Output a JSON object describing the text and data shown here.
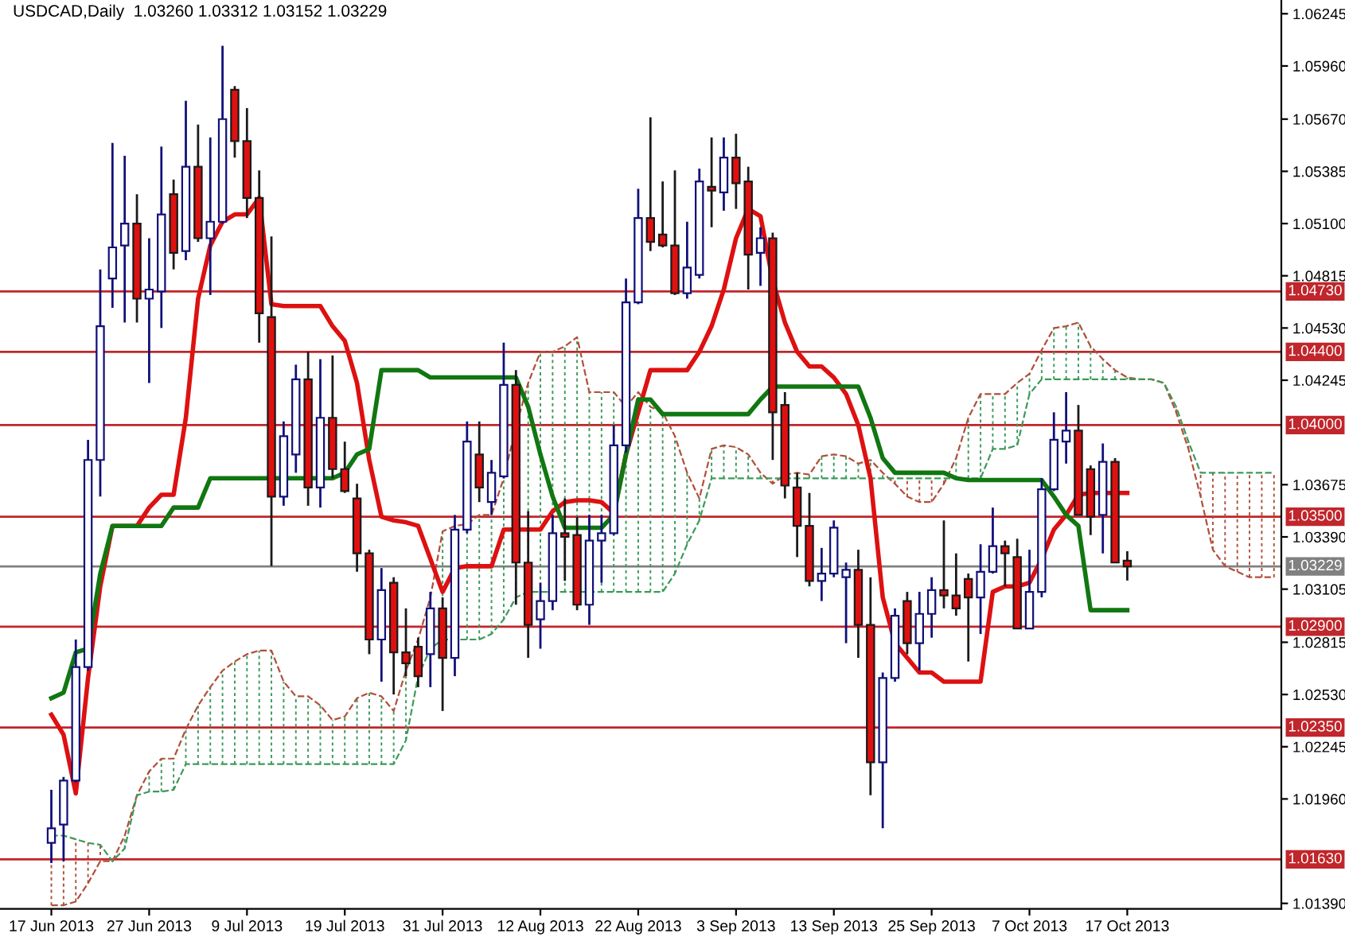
{
  "chart_data": {
    "type": "candlestick",
    "title": "USDCAD,Daily  1.03260 1.03312 1.03152 1.03229",
    "categories": [
      "17 Jun 2013",
      null,
      null,
      null,
      null,
      null,
      null,
      null,
      "27 Jun 2013",
      null,
      null,
      null,
      null,
      null,
      null,
      null,
      "9 Jul 2013",
      null,
      null,
      null,
      null,
      null,
      null,
      null,
      "19 Jul 2013",
      null,
      null,
      null,
      null,
      null,
      null,
      null,
      "31 Jul 2013",
      null,
      null,
      null,
      null,
      null,
      null,
      null,
      "12 Aug 2013",
      null,
      null,
      null,
      null,
      null,
      null,
      null,
      "22 Aug 2013",
      null,
      null,
      null,
      null,
      null,
      null,
      null,
      "3 Sep 2013",
      null,
      null,
      null,
      null,
      null,
      null,
      null,
      "13 Sep 2013",
      null,
      null,
      null,
      null,
      null,
      null,
      null,
      "25 Sep 2013",
      null,
      null,
      null,
      null,
      null,
      null,
      null,
      "7 Oct 2013",
      null,
      null,
      null,
      null,
      null,
      null,
      null,
      "17 Oct 2013",
      null,
      null,
      null,
      null,
      null,
      null,
      null,
      null,
      null,
      null,
      null,
      null
    ],
    "ohlc": [
      [
        1.0172,
        1.0201,
        1.0161,
        1.018
      ],
      [
        1.0182,
        1.0208,
        1.0162,
        1.0206
      ],
      [
        1.0206,
        1.0283,
        1.0205,
        1.0268
      ],
      [
        1.0268,
        1.0392,
        1.0266,
        1.0381
      ],
      [
        1.0381,
        1.0485,
        1.0361,
        1.0454
      ],
      [
        1.048,
        1.0554,
        1.0464,
        1.0497
      ],
      [
        1.0498,
        1.0547,
        1.0456,
        1.051
      ],
      [
        1.051,
        1.0526,
        1.0456,
        1.0469
      ],
      [
        1.0469,
        1.0502,
        1.0423,
        1.0474
      ],
      [
        1.0473,
        1.0552,
        1.0453,
        1.0515
      ],
      [
        1.0526,
        1.0534,
        1.0485,
        1.0494
      ],
      [
        1.0495,
        1.0577,
        1.049,
        1.0541
      ],
      [
        1.0541,
        1.0564,
        1.05,
        1.0502
      ],
      [
        1.0502,
        1.0557,
        1.0471,
        1.0511
      ],
      [
        1.0511,
        1.0607,
        1.051,
        1.0567
      ],
      [
        1.0583,
        1.0585,
        1.0546,
        1.0555
      ],
      [
        1.0555,
        1.0573,
        1.0513,
        1.0524
      ],
      [
        1.0524,
        1.0539,
        1.0445,
        1.0461
      ],
      [
        1.0459,
        1.0503,
        1.0323,
        1.0361
      ],
      [
        1.0361,
        1.0402,
        1.0356,
        1.0394
      ],
      [
        1.0384,
        1.0433,
        1.0374,
        1.0425
      ],
      [
        1.0425,
        1.044,
        1.0356,
        1.0366
      ],
      [
        1.0366,
        1.0436,
        1.0355,
        1.0404
      ],
      [
        1.0404,
        1.0438,
        1.0371,
        1.0376
      ],
      [
        1.0376,
        1.0391,
        1.0363,
        1.0364
      ],
      [
        1.036,
        1.0368,
        1.032,
        1.033
      ],
      [
        1.033,
        1.0332,
        1.0275,
        1.0283
      ],
      [
        1.0283,
        1.0322,
        1.026,
        1.031
      ],
      [
        1.0314,
        1.0317,
        1.0253,
        1.0276
      ],
      [
        1.0276,
        1.03,
        1.0263,
        1.027
      ],
      [
        1.0279,
        1.0284,
        1.0257,
        1.0263
      ],
      [
        1.0275,
        1.0309,
        1.0257,
        1.03
      ],
      [
        1.03,
        1.0306,
        1.0244,
        1.0273
      ],
      [
        1.0273,
        1.0351,
        1.0263,
        1.0343
      ],
      [
        1.0343,
        1.0402,
        1.0341,
        1.0391
      ],
      [
        1.0384,
        1.0402,
        1.0358,
        1.0366
      ],
      [
        1.0358,
        1.0381,
        1.0351,
        1.0374
      ],
      [
        1.0372,
        1.0445,
        1.0371,
        1.0422
      ],
      [
        1.0422,
        1.043,
        1.0302,
        1.0325
      ],
      [
        1.0325,
        1.0353,
        1.0273,
        1.0291
      ],
      [
        1.0294,
        1.0314,
        1.0278,
        1.0304
      ],
      [
        1.0304,
        1.0351,
        1.0299,
        1.0341
      ],
      [
        1.0341,
        1.036,
        1.0315,
        1.0339
      ],
      [
        1.034,
        1.035,
        1.0299,
        1.0302
      ],
      [
        1.0302,
        1.0351,
        1.0291,
        1.0337
      ],
      [
        1.0337,
        1.0351,
        1.0314,
        1.0341
      ],
      [
        1.0341,
        1.04,
        1.034,
        1.0389
      ],
      [
        1.0389,
        1.048,
        1.0385,
        1.0467
      ],
      [
        1.0467,
        1.0529,
        1.0466,
        1.0513
      ],
      [
        1.0513,
        1.0568,
        1.0495,
        1.05
      ],
      [
        1.0504,
        1.0533,
        1.0497,
        1.0498
      ],
      [
        1.0498,
        1.0539,
        1.0471,
        1.0472
      ],
      [
        1.0472,
        1.0511,
        1.0469,
        1.0486
      ],
      [
        1.0482,
        1.054,
        1.048,
        1.0533
      ],
      [
        1.053,
        1.0557,
        1.0508,
        1.0528
      ],
      [
        1.0527,
        1.0557,
        1.0517,
        1.0546
      ],
      [
        1.0546,
        1.0559,
        1.0518,
        1.0532
      ],
      [
        1.0533,
        1.0541,
        1.0474,
        1.0493
      ],
      [
        1.0494,
        1.0508,
        1.0476,
        1.0502
      ],
      [
        1.0502,
        1.0505,
        1.0381,
        1.0407
      ],
      [
        1.0411,
        1.0418,
        1.036,
        1.0367
      ],
      [
        1.0366,
        1.0374,
        1.0328,
        1.0345
      ],
      [
        1.0345,
        1.0363,
        1.0312,
        1.0315
      ],
      [
        1.0315,
        1.0333,
        1.0304,
        1.0319
      ],
      [
        1.0319,
        1.0348,
        1.0317,
        1.0344
      ],
      [
        1.0317,
        1.0325,
        1.0281,
        1.0321
      ],
      [
        1.0321,
        1.0332,
        1.0273,
        1.0291
      ],
      [
        1.0291,
        1.0317,
        1.0198,
        1.0216
      ],
      [
        1.0216,
        1.0265,
        1.018,
        1.0262
      ],
      [
        1.0262,
        1.03,
        1.026,
        1.0296
      ],
      [
        1.0304,
        1.0309,
        1.0275,
        1.0281
      ],
      [
        1.0281,
        1.0309,
        1.0266,
        1.0297
      ],
      [
        1.0297,
        1.0317,
        1.0284,
        1.031
      ],
      [
        1.031,
        1.0348,
        1.03,
        1.0307
      ],
      [
        1.0307,
        1.033,
        1.0296,
        1.03
      ],
      [
        1.0316,
        1.0319,
        1.0271,
        1.0306
      ],
      [
        1.0306,
        1.0335,
        1.0286,
        1.032
      ],
      [
        1.032,
        1.0355,
        1.0319,
        1.0334
      ],
      [
        1.0334,
        1.0337,
        1.0312,
        1.033
      ],
      [
        1.0328,
        1.0338,
        1.0289,
        1.0289
      ],
      [
        1.0289,
        1.0332,
        1.0289,
        1.0309
      ],
      [
        1.0309,
        1.0371,
        1.0306,
        1.0365
      ],
      [
        1.0365,
        1.0407,
        1.0364,
        1.0392
      ],
      [
        1.0391,
        1.0418,
        1.0379,
        1.0397
      ],
      [
        1.0397,
        1.0411,
        1.0351,
        1.0351
      ],
      [
        1.0376,
        1.0378,
        1.034,
        1.035
      ],
      [
        1.0351,
        1.039,
        1.033,
        1.038
      ],
      [
        1.038,
        1.0382,
        1.0325,
        1.0325
      ],
      [
        1.0326,
        1.03312,
        1.03152,
        1.03229
      ],
      null,
      null,
      null,
      null,
      null,
      null,
      null,
      null,
      null,
      null,
      null,
      null
    ],
    "colors": [
      "#ffffff",
      "#ffffff",
      "#ffffff",
      "#ffffff",
      "#ffffff",
      "#ffffff",
      "#ffffff",
      "#e01010",
      "#ffffff",
      "#ffffff",
      "#e01010",
      "#ffffff",
      "#e01010",
      "#ffffff",
      "#ffffff",
      "#e01010",
      "#e01010",
      "#e01010",
      "#e01010",
      "#ffffff",
      "#ffffff",
      "#e01010",
      "#ffffff",
      "#e01010",
      "#e01010",
      "#e01010",
      "#e01010",
      "#ffffff",
      "#e01010",
      "#e01010",
      "#e01010",
      "#ffffff",
      "#e01010",
      "#ffffff",
      "#ffffff",
      "#e01010",
      "#ffffff",
      "#ffffff",
      "#e01010",
      "#e01010",
      "#ffffff",
      "#ffffff",
      "#e01010",
      "#e01010",
      "#ffffff",
      "#ffffff",
      "#ffffff",
      "#ffffff",
      "#ffffff",
      "#e01010",
      "#e01010",
      "#e01010",
      "#ffffff",
      "#ffffff",
      "#e01010",
      "#ffffff",
      "#e01010",
      "#e01010",
      "#ffffff",
      "#e01010",
      "#e01010",
      "#e01010",
      "#e01010",
      "#ffffff",
      "#ffffff",
      "#ffffff",
      "#e01010",
      "#e01010",
      "#ffffff",
      "#ffffff",
      "#e01010",
      "#ffffff",
      "#ffffff",
      "#e01010",
      "#e01010",
      "#e01010",
      "#ffffff",
      "#ffffff",
      "#e01010",
      "#e01010",
      "#ffffff",
      "#ffffff",
      "#ffffff",
      "#ffffff",
      "#e01010",
      "#e01010",
      "#ffffff",
      "#e01010",
      "#e01010",
      null,
      null,
      null,
      null,
      null,
      null,
      null,
      null,
      null,
      null,
      null,
      null
    ],
    "series": [
      {
        "type": "line",
        "color": "#b0503a",
        "line_style": "dashed",
        "values": [
          1.0138,
          1.0138,
          1.014,
          1.015,
          1.0162,
          1.0162,
          1.0176,
          1.0198,
          1.0211,
          1.0218,
          1.0218,
          1.0234,
          1.0247,
          1.0257,
          1.0266,
          1.0271,
          1.0275,
          1.0277,
          1.0277,
          1.026,
          1.0252,
          1.0252,
          1.0247,
          1.0239,
          1.0241,
          1.0251,
          1.0254,
          1.0252,
          1.0244,
          1.0266,
          1.0283,
          1.0306,
          1.0342,
          1.0345,
          1.0346,
          1.0351,
          1.0351,
          1.0371,
          1.0399,
          1.0423,
          1.044,
          1.044,
          1.0443,
          1.0448,
          1.0418,
          1.0418,
          1.0418,
          1.041,
          1.0418,
          1.041,
          1.0407,
          1.0394,
          1.0374,
          1.036,
          1.0387,
          1.0389,
          1.0388,
          1.0384,
          1.0374,
          1.0368,
          1.0373,
          1.0374,
          1.0373,
          1.0383,
          1.0384,
          1.0383,
          1.0379,
          1.0381,
          1.0374,
          1.0368,
          1.0361,
          1.0358,
          1.0358,
          1.0368,
          1.0382,
          1.0404,
          1.0417,
          1.0417,
          1.0417,
          1.0423,
          1.0428,
          1.0441,
          1.0453,
          1.0454,
          1.0456,
          1.0443,
          1.0436,
          1.043,
          1.0426,
          1.0425,
          1.0425,
          1.0423,
          1.0407,
          1.0387,
          1.0361,
          1.0332,
          1.0323,
          1.032,
          1.0317,
          1.0317,
          1.0317
        ]
      },
      {
        "type": "line",
        "color": "#3c9a5a",
        "line_style": "dashed",
        "values": [
          1.0176,
          1.0176,
          1.0174,
          1.0172,
          1.0171,
          1.0162,
          1.0169,
          1.0198,
          1.02,
          1.02,
          1.0201,
          1.0215,
          1.0215,
          1.0215,
          1.0215,
          1.0215,
          1.0215,
          1.0215,
          1.0215,
          1.0215,
          1.0215,
          1.0215,
          1.0215,
          1.0215,
          1.0215,
          1.0215,
          1.0215,
          1.0215,
          1.0215,
          1.0228,
          1.0263,
          1.0278,
          1.0283,
          1.0283,
          1.0283,
          1.0283,
          1.0286,
          1.0294,
          1.0306,
          1.0309,
          1.0309,
          1.0309,
          1.0309,
          1.0309,
          1.0309,
          1.0309,
          1.0309,
          1.0309,
          1.0309,
          1.0309,
          1.0309,
          1.0319,
          1.0335,
          1.0348,
          1.0371,
          1.0371,
          1.0371,
          1.0371,
          1.0371,
          1.0371,
          1.0371,
          1.0371,
          1.0371,
          1.0371,
          1.0371,
          1.0371,
          1.0371,
          1.0371,
          1.0371,
          1.0371,
          1.0371,
          1.0371,
          1.0371,
          1.0371,
          1.0371,
          1.0371,
          1.0371,
          1.0387,
          1.0387,
          1.0389,
          1.0417,
          1.0425,
          1.0425,
          1.0425,
          1.0425,
          1.0425,
          1.0425,
          1.0425,
          1.0425,
          1.0425,
          1.0425,
          1.0423,
          1.041,
          1.0391,
          1.0374,
          1.0374,
          1.0374,
          1.0374,
          1.0374,
          1.0374,
          1.0374
        ]
      },
      {
        "type": "line",
        "color": "#dd1111",
        "values": [
          1.0242,
          1.0231,
          1.0199,
          1.0262,
          1.0312,
          1.0345,
          1.0345,
          1.0345,
          1.0355,
          1.0362,
          1.0362,
          1.0404,
          1.0469,
          1.0498,
          1.0511,
          1.0515,
          1.0515,
          1.0524,
          1.0466,
          1.0465,
          1.0465,
          1.0465,
          1.0465,
          1.0454,
          1.0446,
          1.0423,
          1.0381,
          1.035,
          1.0348,
          1.0347,
          1.0345,
          1.0327,
          1.0309,
          1.0322,
          1.0323,
          1.0323,
          1.0323,
          1.0343,
          1.0343,
          1.0343,
          1.0343,
          1.0353,
          1.0358,
          1.0359,
          1.0359,
          1.0358,
          1.0352,
          1.0384,
          1.0407,
          1.043,
          1.043,
          1.043,
          1.043,
          1.044,
          1.0454,
          1.0474,
          1.0502,
          1.0518,
          1.0514,
          1.0479,
          1.0456,
          1.044,
          1.0432,
          1.0432,
          1.0426,
          1.0417,
          1.04,
          1.0371,
          1.0306,
          1.0281,
          1.0273,
          1.0265,
          1.0265,
          1.026,
          1.026,
          1.026,
          1.026,
          1.0309,
          1.0312,
          1.0312,
          1.0314,
          1.0327,
          1.0343,
          1.0351,
          1.0362,
          1.0363,
          1.0363,
          1.0363,
          1.0363,
          null,
          null,
          null,
          null,
          null,
          null,
          null,
          null,
          null,
          null,
          null,
          null
        ]
      },
      {
        "type": "line",
        "color": "#117711",
        "values": [
          1.0251,
          1.0254,
          1.0276,
          1.0278,
          1.0319,
          1.0345,
          1.0345,
          1.0345,
          1.0345,
          1.0345,
          1.0355,
          1.0355,
          1.0355,
          1.0371,
          1.0371,
          1.0371,
          1.0371,
          1.0371,
          1.0371,
          1.0371,
          1.0371,
          1.0371,
          1.0371,
          1.0371,
          1.0374,
          1.0384,
          1.0387,
          1.043,
          1.043,
          1.043,
          1.043,
          1.0426,
          1.0426,
          1.0426,
          1.0426,
          1.0426,
          1.0426,
          1.0426,
          1.0426,
          1.041,
          1.0384,
          1.0361,
          1.0344,
          1.0344,
          1.0344,
          1.0344,
          1.0351,
          1.0384,
          1.0414,
          1.0414,
          1.0406,
          1.0406,
          1.0406,
          1.0406,
          1.0406,
          1.0406,
          1.0406,
          1.0406,
          1.0414,
          1.0421,
          1.0421,
          1.0421,
          1.0421,
          1.0421,
          1.0421,
          1.0421,
          1.0421,
          1.0404,
          1.0382,
          1.0374,
          1.0374,
          1.0374,
          1.0374,
          1.0374,
          1.0371,
          1.037,
          1.037,
          1.037,
          1.037,
          1.037,
          1.037,
          1.037,
          1.0361,
          1.0351,
          1.0345,
          1.0299,
          1.0299,
          1.0299,
          1.0299,
          null,
          null,
          null,
          null,
          null,
          null,
          null,
          null,
          null,
          null,
          null,
          null
        ]
      }
    ],
    "ylim": [
      1.0136,
      1.0632
    ],
    "yticks": [
      1.06245,
      {
        "value": 1.0596,
        "label": "1.05960"
      },
      {
        "value": 1.0567,
        "label": "1.05670"
      },
      1.05385,
      {
        "value": 1.051,
        "label": "1.05100"
      },
      1.04815,
      {
        "value": 1.0453,
        "label": "1.04530"
      },
      1.04245,
      1.03675,
      {
        "value": 1.0339,
        "label": "1.03390"
      },
      1.03105,
      1.02815,
      {
        "value": 1.0253,
        "label": "1.02530"
      },
      1.02245,
      {
        "value": 1.0196,
        "label": "1.01960"
      },
      {
        "value": 1.0139,
        "label": "1.01390"
      }
    ],
    "ref_lines": [
      {
        "axis": "y",
        "value": 1.0473,
        "label": "1.04730",
        "color": "#c0262b"
      },
      {
        "axis": "y",
        "value": 1.044,
        "label": "1.04400",
        "color": "#c0262b"
      },
      {
        "axis": "y",
        "value": 1.04,
        "label": "1.04000",
        "color": "#c0262b"
      },
      {
        "axis": "y",
        "value": 1.035,
        "label": "1.03500",
        "color": "#c0262b"
      },
      {
        "axis": "y",
        "value": 1.03229,
        "label": "1.03229",
        "color": "#808080"
      },
      {
        "axis": "y",
        "value": 1.029,
        "label": "1.02900",
        "color": "#c0262b"
      },
      {
        "axis": "y",
        "value": 1.0235,
        "label": "1.02350",
        "color": "#c0262b"
      },
      {
        "axis": "y",
        "value": 1.0163,
        "label": "1.01630",
        "color": "#c0262b"
      }
    ]
  }
}
